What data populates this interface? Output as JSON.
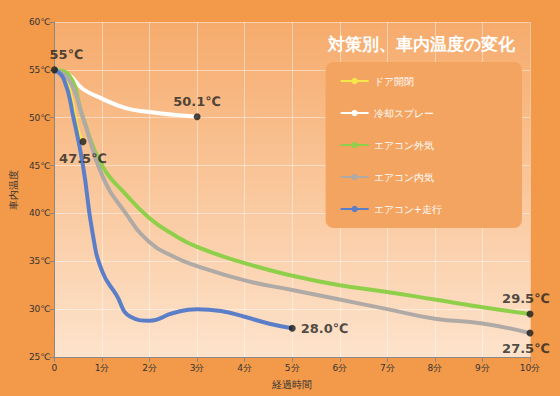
{
  "chart_data": {
    "type": "line",
    "title": "対策別、車内温度の変化",
    "x_label": "経過時間",
    "y_label": "車内温度",
    "xlim": [
      0,
      10
    ],
    "xticks": [
      0,
      {
        "value": 1,
        "label": "1分"
      },
      {
        "value": 2,
        "label": "2分"
      },
      {
        "value": 3,
        "label": "3分"
      },
      {
        "value": 4,
        "label": "4分"
      },
      {
        "value": 5,
        "label": "5分"
      },
      {
        "value": 6,
        "label": "6分"
      },
      {
        "value": 7,
        "label": "7分"
      },
      {
        "value": 8,
        "label": "8分"
      },
      {
        "value": 9,
        "label": "9分"
      },
      {
        "value": 10,
        "label": "10分"
      }
    ],
    "ylim": [
      25,
      60
    ],
    "yticks": [
      {
        "value": 25,
        "label": "25℃"
      },
      {
        "value": 30,
        "label": "30℃"
      },
      {
        "value": 35,
        "label": "35℃"
      },
      {
        "value": 40,
        "label": "40℃"
      },
      {
        "value": 45,
        "label": "45℃"
      },
      {
        "value": 50,
        "label": "50℃"
      },
      {
        "value": 55,
        "label": "55℃"
      },
      {
        "value": 60,
        "label": "60℃"
      }
    ],
    "grid": true,
    "legend": "upper right",
    "series": [
      {
        "name": "ドア開閉",
        "color": "#f5e64a",
        "x": [
          0,
          0.2,
          0.35,
          0.5,
          0.6
        ],
        "values": [
          55,
          54.5,
          52,
          48.5,
          47.5
        ]
      },
      {
        "name": "冷却スプレー",
        "color": "#ffffff",
        "x": [
          0,
          0.3,
          0.6,
          1,
          1.5,
          2,
          2.5,
          3
        ],
        "values": [
          55,
          54.5,
          53,
          52,
          51,
          50.6,
          50.3,
          50.1
        ]
      },
      {
        "name": "エアコン外気",
        "color": "#8fcf4a",
        "x": [
          0,
          0.3,
          0.6,
          1,
          1.5,
          2,
          2.5,
          3,
          4,
          5,
          6,
          7,
          8,
          9,
          10
        ],
        "values": [
          55,
          54.5,
          50,
          45,
          42,
          39.5,
          37.8,
          36.5,
          34.8,
          33.5,
          32.5,
          31.8,
          31,
          30.2,
          29.5
        ]
      },
      {
        "name": "エアコン内気",
        "color": "#b0aaa6",
        "x": [
          0,
          0.3,
          0.6,
          1,
          1.5,
          2,
          2.5,
          3,
          4,
          5,
          6,
          7,
          8,
          9,
          10
        ],
        "values": [
          55,
          54,
          50,
          44,
          40,
          37,
          35.5,
          34.5,
          33,
          32,
          31,
          30,
          29,
          28.5,
          27.5
        ]
      },
      {
        "name": "エアコン+走行",
        "color": "#5a7ec8",
        "x": [
          0,
          0.2,
          0.4,
          0.6,
          0.8,
          1,
          1.3,
          1.6,
          2,
          2.5,
          3,
          3.5,
          4,
          4.5,
          5
        ],
        "values": [
          55,
          54,
          50,
          45,
          38,
          34,
          31.5,
          29.2,
          28.8,
          29.6,
          30,
          29.8,
          29.2,
          28.5,
          28.0
        ]
      }
    ],
    "annotations": [
      {
        "x": 0,
        "y": 55,
        "text": "55℃"
      },
      {
        "x": 0.6,
        "y": 47.5,
        "text": "47.5℃"
      },
      {
        "x": 3,
        "y": 50.1,
        "text": "50.1℃"
      },
      {
        "x": 5,
        "y": 28.0,
        "text": "28.0℃"
      },
      {
        "x": 10,
        "y": 29.5,
        "text": "29.5℃"
      },
      {
        "x": 10,
        "y": 27.5,
        "text": "27.5℃"
      }
    ]
  }
}
